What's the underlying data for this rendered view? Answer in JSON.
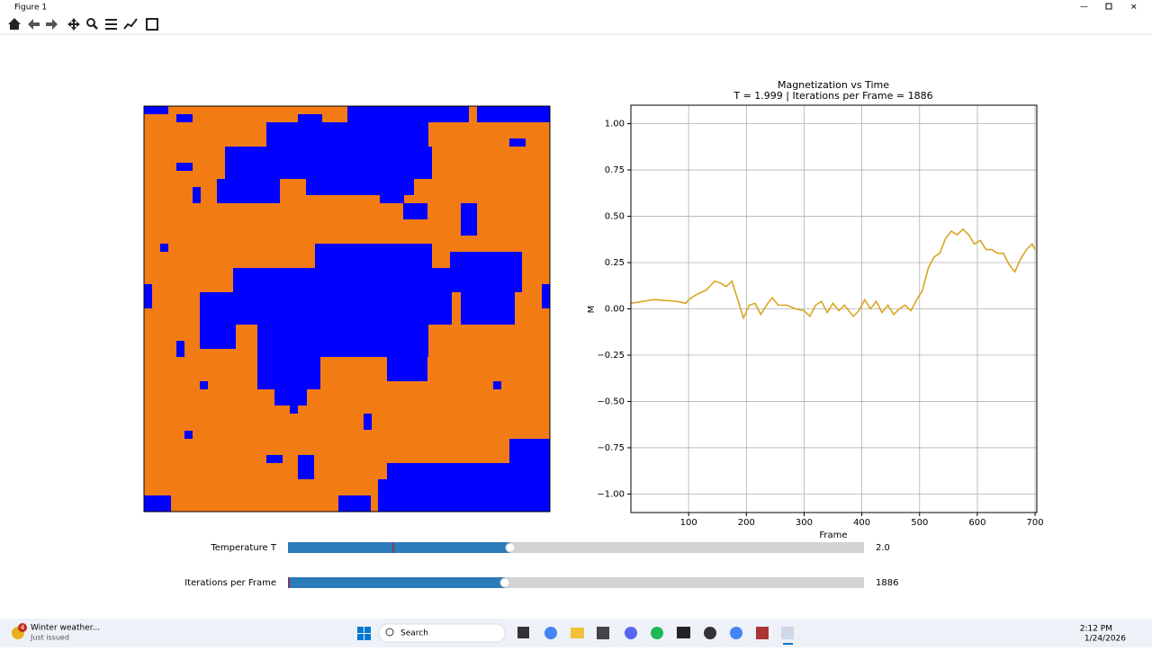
{
  "window": {
    "title": "Figure 1"
  },
  "chart_data": {
    "type": "line",
    "title": "Magnetization vs Time",
    "subtitle": "T = 1.999 | Iterations per Frame = 1886",
    "x_label": "Frame",
    "y_label": "M",
    "xlim": [
      0,
      703
    ],
    "ylim": [
      -1.1,
      1.1
    ],
    "xticks": [
      100,
      200,
      300,
      400,
      500,
      600,
      700
    ],
    "yticks": [
      {
        "value": 1,
        "label": "1.00"
      },
      {
        "value": 0.75,
        "label": "0.75"
      },
      {
        "value": 0.5,
        "label": "0.50"
      },
      {
        "value": 0.25,
        "label": "0.25"
      },
      {
        "value": 0,
        "label": "0.00"
      },
      {
        "value": -0.25,
        "label": "−0.25"
      },
      {
        "value": -0.5,
        "label": "−0.50"
      },
      {
        "value": -0.75,
        "label": "−0.75"
      },
      {
        "value": -1,
        "label": "−1.00"
      }
    ],
    "grid": true,
    "x": [
      0,
      20,
      40,
      60,
      80,
      95,
      100,
      115,
      130,
      145,
      155,
      165,
      175,
      185,
      195,
      205,
      215,
      225,
      235,
      245,
      255,
      270,
      285,
      300,
      310,
      320,
      330,
      340,
      350,
      360,
      370,
      385,
      395,
      405,
      415,
      425,
      435,
      445,
      455,
      465,
      475,
      485,
      495,
      505,
      515,
      525,
      535,
      545,
      555,
      565,
      575,
      585,
      595,
      605,
      615,
      625,
      635,
      645,
      655,
      665,
      675,
      685,
      695,
      700
    ],
    "series": [
      {
        "name": "M",
        "color": "#daa520",
        "values": [
          0.03,
          0.04,
          0.05,
          0.045,
          0.04,
          0.03,
          0.05,
          0.08,
          0.1,
          0.15,
          0.14,
          0.12,
          0.15,
          0.05,
          -0.05,
          0.02,
          0.03,
          -0.03,
          0.02,
          0.06,
          0.02,
          0.02,
          0.0,
          -0.01,
          -0.04,
          0.02,
          0.04,
          -0.02,
          0.03,
          -0.01,
          0.02,
          -0.04,
          -0.01,
          0.05,
          0.0,
          0.04,
          -0.02,
          0.02,
          -0.03,
          0.0,
          0.02,
          -0.01,
          0.05,
          0.1,
          0.22,
          0.28,
          0.3,
          0.38,
          0.42,
          0.4,
          0.43,
          0.4,
          0.35,
          0.37,
          0.32,
          0.32,
          0.3,
          0.3,
          0.24,
          0.2,
          0.27,
          0.32,
          0.35,
          0.32
        ]
      }
    ]
  },
  "sliders": [
    {
      "label": "Temperature T",
      "value": "2.0"
    },
    {
      "label": "Iterations per Frame",
      "value": "1886"
    }
  ],
  "taskbar": {
    "badge": "4",
    "weather_title": "Winter weather...",
    "weather_sub": "Just issued",
    "search": "Search",
    "time": "2:12 PM",
    "date": "1/24/2026"
  }
}
